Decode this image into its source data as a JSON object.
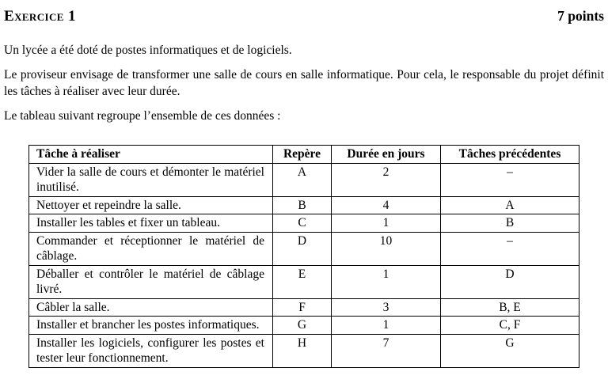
{
  "header": {
    "title": "Exercice 1",
    "points": "7 points"
  },
  "paragraphs": [
    "Un lycée a été doté de postes informatiques et de logiciels.",
    "Le proviseur envisage de transformer une salle de cours en salle informatique. Pour cela, le responsable du projet définit les tâches à réaliser avec leur durée.",
    "Le tableau suivant regroupe l’ensemble de ces données :"
  ],
  "table": {
    "headers": [
      "Tâche à réaliser",
      "Repère",
      "Durée en jours",
      "Tâches précédentes"
    ],
    "rows": [
      {
        "task": "Vider la salle de cours et démonter le matériel inutilisé.",
        "repere": "A",
        "duree": "2",
        "precedentes": "–"
      },
      {
        "task": "Nettoyer et repeindre la salle.",
        "repere": "B",
        "duree": "4",
        "precedentes": "A"
      },
      {
        "task": "Installer les tables et fixer un tableau.",
        "repere": "C",
        "duree": "1",
        "precedentes": "B"
      },
      {
        "task": "Commander et réceptionner le matériel de câblage.",
        "repere": "D",
        "duree": "10",
        "precedentes": "–"
      },
      {
        "task": "Déballer et contrôler le matériel de câblage livré.",
        "repere": "E",
        "duree": "1",
        "precedentes": "D"
      },
      {
        "task": "Câbler la salle.",
        "repere": "F",
        "duree": "3",
        "precedentes": "B, E"
      },
      {
        "task": "Installer et brancher les postes informatiques.",
        "repere": "G",
        "duree": "1",
        "precedentes": "C, F"
      },
      {
        "task": "Installer les logiciels, configurer les postes et tester leur fonctionnement.",
        "repere": "H",
        "duree": "7",
        "precedentes": "G"
      }
    ]
  }
}
